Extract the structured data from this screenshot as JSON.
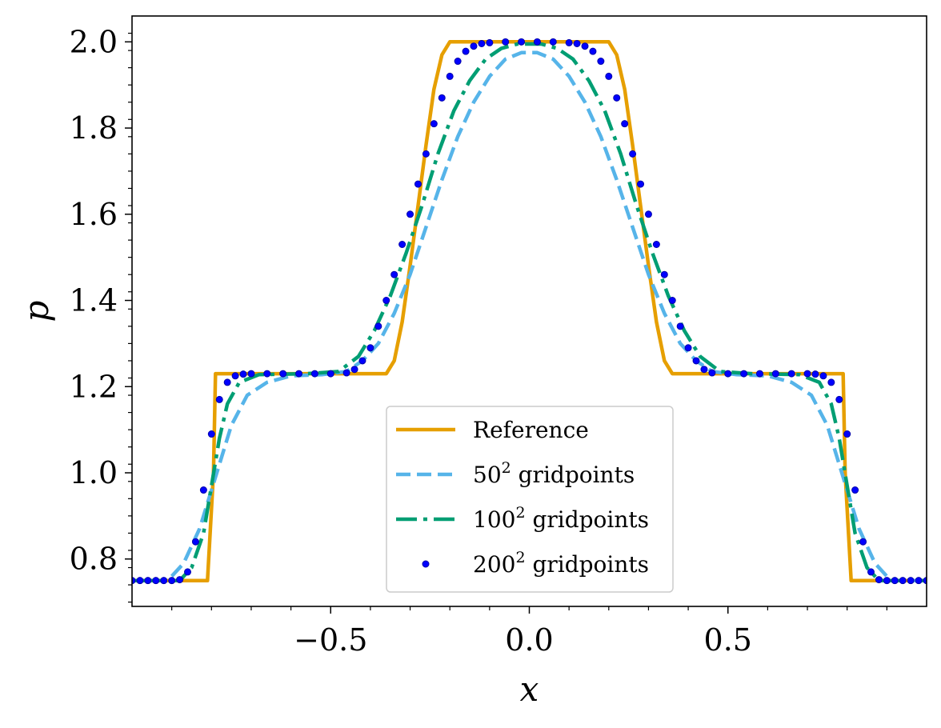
{
  "chart_data": {
    "type": "line",
    "title": "",
    "xlabel": "x",
    "ylabel": "p",
    "xlim": [
      -1.0,
      1.0
    ],
    "ylim": [
      0.69,
      2.06
    ],
    "x_ticks": [
      -0.5,
      0.0,
      0.5
    ],
    "x_tick_labels": [
      "−0.5",
      "0.0",
      "0.5"
    ],
    "y_ticks": [
      0.8,
      1.0,
      1.2,
      1.4,
      1.6,
      1.8,
      2.0
    ],
    "y_tick_labels": [
      "0.8",
      "1.0",
      "1.2",
      "1.4",
      "1.6",
      "1.8",
      "2.0"
    ],
    "grid": false,
    "legend_position": "bottom-center",
    "legend": [
      {
        "label": "Reference",
        "sup": "",
        "suffix": ""
      },
      {
        "label": "50",
        "sup": "2",
        "suffix": " gridpoints"
      },
      {
        "label": "100",
        "sup": "2",
        "suffix": " gridpoints"
      },
      {
        "label": "200",
        "sup": "2",
        "suffix": " gridpoints"
      }
    ],
    "series": [
      {
        "name": "Reference",
        "style": "solid",
        "color": "#E69F00",
        "points": [
          [
            -1.0,
            0.75
          ],
          [
            -0.81,
            0.75
          ],
          [
            -0.795,
            1.0
          ],
          [
            -0.79,
            1.23
          ],
          [
            -0.36,
            1.23
          ],
          [
            -0.34,
            1.26
          ],
          [
            -0.32,
            1.35
          ],
          [
            -0.3,
            1.48
          ],
          [
            -0.28,
            1.62
          ],
          [
            -0.26,
            1.76
          ],
          [
            -0.24,
            1.89
          ],
          [
            -0.22,
            1.97
          ],
          [
            -0.2,
            2.0
          ],
          [
            0.2,
            2.0
          ],
          [
            0.22,
            1.97
          ],
          [
            0.24,
            1.89
          ],
          [
            0.26,
            1.76
          ],
          [
            0.28,
            1.62
          ],
          [
            0.3,
            1.48
          ],
          [
            0.32,
            1.35
          ],
          [
            0.34,
            1.26
          ],
          [
            0.36,
            1.23
          ],
          [
            0.79,
            1.23
          ],
          [
            0.795,
            1.0
          ],
          [
            0.81,
            0.75
          ],
          [
            1.0,
            0.75
          ]
        ]
      },
      {
        "name": "50^2 gridpoints",
        "style": "dashed",
        "color": "#56B4E9",
        "points": [
          [
            -1.0,
            0.75
          ],
          [
            -0.91,
            0.75
          ],
          [
            -0.87,
            0.79
          ],
          [
            -0.83,
            0.87
          ],
          [
            -0.79,
            0.99
          ],
          [
            -0.75,
            1.11
          ],
          [
            -0.71,
            1.18
          ],
          [
            -0.66,
            1.21
          ],
          [
            -0.6,
            1.225
          ],
          [
            -0.52,
            1.228
          ],
          [
            -0.46,
            1.235
          ],
          [
            -0.42,
            1.26
          ],
          [
            -0.38,
            1.3
          ],
          [
            -0.34,
            1.37
          ],
          [
            -0.3,
            1.46
          ],
          [
            -0.26,
            1.57
          ],
          [
            -0.22,
            1.68
          ],
          [
            -0.18,
            1.78
          ],
          [
            -0.14,
            1.86
          ],
          [
            -0.1,
            1.92
          ],
          [
            -0.06,
            1.96
          ],
          [
            -0.02,
            1.975
          ],
          [
            0.02,
            1.975
          ],
          [
            0.06,
            1.96
          ],
          [
            0.1,
            1.92
          ],
          [
            0.14,
            1.86
          ],
          [
            0.18,
            1.78
          ],
          [
            0.22,
            1.68
          ],
          [
            0.26,
            1.57
          ],
          [
            0.3,
            1.46
          ],
          [
            0.34,
            1.37
          ],
          [
            0.38,
            1.3
          ],
          [
            0.42,
            1.26
          ],
          [
            0.46,
            1.235
          ],
          [
            0.52,
            1.228
          ],
          [
            0.6,
            1.225
          ],
          [
            0.66,
            1.21
          ],
          [
            0.71,
            1.18
          ],
          [
            0.75,
            1.11
          ],
          [
            0.79,
            0.99
          ],
          [
            0.83,
            0.87
          ],
          [
            0.87,
            0.79
          ],
          [
            0.91,
            0.75
          ],
          [
            1.0,
            0.75
          ]
        ]
      },
      {
        "name": "100^2 gridpoints",
        "style": "dashdot",
        "color": "#009E73",
        "points": [
          [
            -1.0,
            0.75
          ],
          [
            -0.88,
            0.75
          ],
          [
            -0.85,
            0.78
          ],
          [
            -0.82,
            0.86
          ],
          [
            -0.8,
            0.97
          ],
          [
            -0.78,
            1.08
          ],
          [
            -0.76,
            1.16
          ],
          [
            -0.73,
            1.21
          ],
          [
            -0.68,
            1.228
          ],
          [
            -0.56,
            1.23
          ],
          [
            -0.48,
            1.235
          ],
          [
            -0.43,
            1.27
          ],
          [
            -0.39,
            1.33
          ],
          [
            -0.35,
            1.41
          ],
          [
            -0.31,
            1.51
          ],
          [
            -0.27,
            1.62
          ],
          [
            -0.23,
            1.74
          ],
          [
            -0.19,
            1.84
          ],
          [
            -0.15,
            1.91
          ],
          [
            -0.11,
            1.96
          ],
          [
            -0.07,
            1.985
          ],
          [
            -0.03,
            1.995
          ],
          [
            0.03,
            1.995
          ],
          [
            0.07,
            1.985
          ],
          [
            0.11,
            1.96
          ],
          [
            0.15,
            1.91
          ],
          [
            0.19,
            1.84
          ],
          [
            0.23,
            1.74
          ],
          [
            0.27,
            1.62
          ],
          [
            0.31,
            1.51
          ],
          [
            0.35,
            1.41
          ],
          [
            0.39,
            1.33
          ],
          [
            0.43,
            1.27
          ],
          [
            0.48,
            1.235
          ],
          [
            0.56,
            1.23
          ],
          [
            0.68,
            1.228
          ],
          [
            0.73,
            1.21
          ],
          [
            0.76,
            1.16
          ],
          [
            0.78,
            1.08
          ],
          [
            0.8,
            0.97
          ],
          [
            0.82,
            0.86
          ],
          [
            0.85,
            0.78
          ],
          [
            0.88,
            0.75
          ],
          [
            1.0,
            0.75
          ]
        ]
      },
      {
        "name": "200^2 gridpoints",
        "style": "dots",
        "color": "#0000FF",
        "points": [
          [
            -1.0,
            0.75
          ],
          [
            -0.98,
            0.75
          ],
          [
            -0.96,
            0.75
          ],
          [
            -0.94,
            0.75
          ],
          [
            -0.92,
            0.75
          ],
          [
            -0.9,
            0.75
          ],
          [
            -0.88,
            0.752
          ],
          [
            -0.86,
            0.77
          ],
          [
            -0.84,
            0.84
          ],
          [
            -0.82,
            0.96
          ],
          [
            -0.8,
            1.09
          ],
          [
            -0.78,
            1.17
          ],
          [
            -0.76,
            1.21
          ],
          [
            -0.74,
            1.225
          ],
          [
            -0.72,
            1.229
          ],
          [
            -0.7,
            1.23
          ],
          [
            -0.66,
            1.23
          ],
          [
            -0.62,
            1.23
          ],
          [
            -0.58,
            1.23
          ],
          [
            -0.54,
            1.23
          ],
          [
            -0.5,
            1.23
          ],
          [
            -0.46,
            1.232
          ],
          [
            -0.44,
            1.24
          ],
          [
            -0.42,
            1.26
          ],
          [
            -0.4,
            1.29
          ],
          [
            -0.38,
            1.34
          ],
          [
            -0.36,
            1.4
          ],
          [
            -0.34,
            1.46
          ],
          [
            -0.32,
            1.53
          ],
          [
            -0.3,
            1.6
          ],
          [
            -0.28,
            1.67
          ],
          [
            -0.26,
            1.74
          ],
          [
            -0.24,
            1.81
          ],
          [
            -0.22,
            1.87
          ],
          [
            -0.2,
            1.92
          ],
          [
            -0.18,
            1.955
          ],
          [
            -0.16,
            1.978
          ],
          [
            -0.14,
            1.99
          ],
          [
            -0.12,
            1.996
          ],
          [
            -0.1,
            1.998
          ],
          [
            -0.06,
            2.0
          ],
          [
            -0.02,
            2.0
          ],
          [
            0.02,
            2.0
          ],
          [
            0.06,
            2.0
          ],
          [
            0.1,
            1.998
          ],
          [
            0.12,
            1.996
          ],
          [
            0.14,
            1.99
          ],
          [
            0.16,
            1.978
          ],
          [
            0.18,
            1.955
          ],
          [
            0.2,
            1.92
          ],
          [
            0.22,
            1.87
          ],
          [
            0.24,
            1.81
          ],
          [
            0.26,
            1.74
          ],
          [
            0.28,
            1.67
          ],
          [
            0.3,
            1.6
          ],
          [
            0.32,
            1.53
          ],
          [
            0.34,
            1.46
          ],
          [
            0.36,
            1.4
          ],
          [
            0.38,
            1.34
          ],
          [
            0.4,
            1.29
          ],
          [
            0.42,
            1.26
          ],
          [
            0.44,
            1.24
          ],
          [
            0.46,
            1.232
          ],
          [
            0.5,
            1.23
          ],
          [
            0.54,
            1.23
          ],
          [
            0.58,
            1.23
          ],
          [
            0.62,
            1.23
          ],
          [
            0.66,
            1.23
          ],
          [
            0.7,
            1.23
          ],
          [
            0.72,
            1.229
          ],
          [
            0.74,
            1.225
          ],
          [
            0.76,
            1.21
          ],
          [
            0.78,
            1.17
          ],
          [
            0.8,
            1.09
          ],
          [
            0.82,
            0.96
          ],
          [
            0.84,
            0.84
          ],
          [
            0.86,
            0.77
          ],
          [
            0.88,
            0.752
          ],
          [
            0.9,
            0.75
          ],
          [
            0.92,
            0.75
          ],
          [
            0.94,
            0.75
          ],
          [
            0.96,
            0.75
          ],
          [
            0.98,
            0.75
          ],
          [
            1.0,
            0.75
          ]
        ]
      }
    ]
  }
}
